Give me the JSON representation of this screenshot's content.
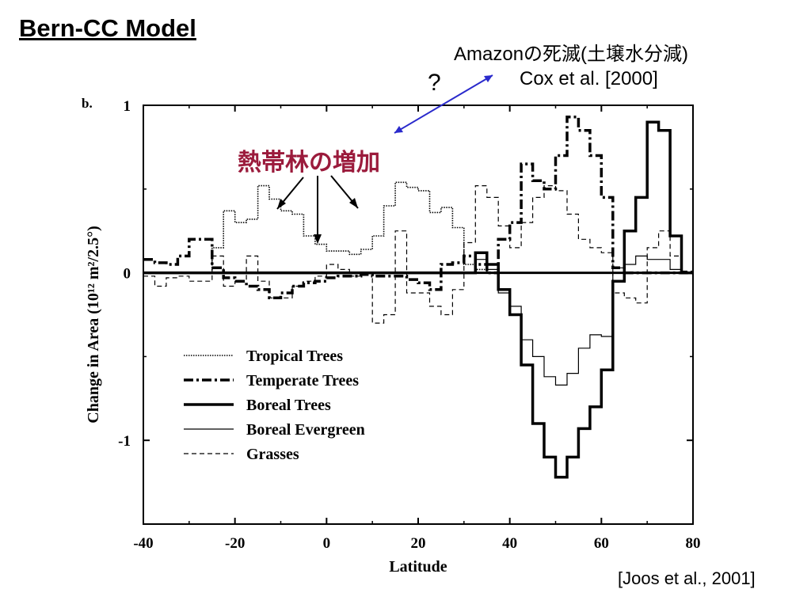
{
  "slide": {
    "title": "Bern-CC Model",
    "note_line1": "Amazonの死滅(土壌水分減)",
    "note_line2": "Cox et al. [2000]",
    "question": "?",
    "tropical_note": "熱帯林の増加",
    "citation": "[Joos et al., 2001]"
  },
  "chart_data": {
    "type": "line",
    "panel_label": "b.",
    "xlabel": "Latitude",
    "ylabel": "Change in Area (10¹² m²/2.5°)",
    "xlim": [
      -40,
      80
    ],
    "ylim": [
      -1.5,
      1
    ],
    "x_ticks": [
      -40,
      -20,
      0,
      20,
      40,
      60,
      80
    ],
    "y_ticks": [
      1,
      0,
      -1
    ],
    "legend_position": "lower-left",
    "step": 2.5,
    "x_start": -40,
    "series": [
      {
        "name": "Tropical Trees",
        "style": "dotted",
        "values": [
          0,
          0,
          0,
          0,
          0,
          0,
          0.15,
          0.37,
          0.3,
          0.32,
          0.52,
          0.44,
          0.37,
          0.35,
          0.22,
          0.17,
          0.13,
          0.13,
          0.11,
          0.14,
          0.22,
          0.4,
          0.54,
          0.51,
          0.49,
          0.36,
          0.39,
          0.27,
          0.05,
          0.02,
          0,
          0,
          0,
          0,
          0,
          0,
          0,
          0,
          0,
          0,
          0,
          0,
          0,
          0,
          0,
          0,
          0,
          0
        ]
      },
      {
        "name": "Temperate Trees",
        "style": "dash-dot",
        "values": [
          0.08,
          0.06,
          0.05,
          0.1,
          0.2,
          0.2,
          0.03,
          -0.03,
          -0.05,
          -0.08,
          -0.1,
          -0.15,
          -0.12,
          -0.08,
          -0.06,
          -0.05,
          -0.03,
          -0.02,
          -0.02,
          -0.01,
          -0.02,
          -0.02,
          -0.02,
          -0.04,
          -0.06,
          -0.1,
          0.05,
          0.06,
          0.1,
          0.05,
          0.0,
          0.2,
          0.3,
          0.65,
          0.55,
          0.5,
          0.7,
          0.93,
          0.85,
          0.7,
          0.45,
          0.03,
          0,
          0,
          0,
          0,
          0,
          0
        ]
      },
      {
        "name": "Boreal Trees",
        "style": "thick",
        "values": [
          0,
          0,
          0,
          0,
          0,
          0,
          0,
          0,
          0,
          0,
          0,
          0,
          0,
          0,
          0,
          0,
          0,
          0,
          0,
          0,
          0,
          0,
          0,
          0,
          0,
          0,
          0,
          0,
          0,
          0.12,
          0.05,
          -0.1,
          -0.25,
          -0.55,
          -0.9,
          -1.1,
          -1.22,
          -1.1,
          -0.93,
          -0.8,
          -0.58,
          -0.05,
          0.25,
          0.45,
          0.9,
          0.85,
          0.22,
          0
        ]
      },
      {
        "name": "Boreal Evergreen",
        "style": "thin",
        "values": [
          0,
          0,
          0,
          0,
          0,
          0,
          0,
          0,
          0,
          0,
          0,
          0,
          0,
          0,
          0,
          0,
          0,
          0,
          0,
          0,
          0,
          0,
          0,
          0,
          0,
          0,
          0,
          0,
          0,
          0.08,
          0.02,
          -0.12,
          -0.2,
          -0.4,
          -0.5,
          -0.62,
          -0.67,
          -0.6,
          -0.45,
          -0.37,
          -0.38,
          0.03,
          0.05,
          0.1,
          0.08,
          0.08,
          0.02,
          0
        ]
      },
      {
        "name": "Grasses",
        "style": "dashed",
        "values": [
          -0.02,
          -0.08,
          -0.03,
          -0.02,
          -0.05,
          -0.05,
          0.1,
          -0.08,
          -0.05,
          0.1,
          -0.05,
          -0.15,
          -0.15,
          -0.08,
          -0.05,
          -0.02,
          0.05,
          0.02,
          -0.02,
          0.0,
          -0.3,
          -0.25,
          0.25,
          -0.12,
          -0.12,
          -0.2,
          -0.25,
          -0.1,
          0.18,
          0.52,
          0.45,
          0.28,
          0.15,
          0.3,
          0.45,
          0.52,
          0.49,
          0.35,
          0.2,
          0.15,
          0.12,
          -0.12,
          -0.15,
          -0.18,
          0.15,
          0.25,
          0.1,
          0.01
        ]
      }
    ]
  }
}
